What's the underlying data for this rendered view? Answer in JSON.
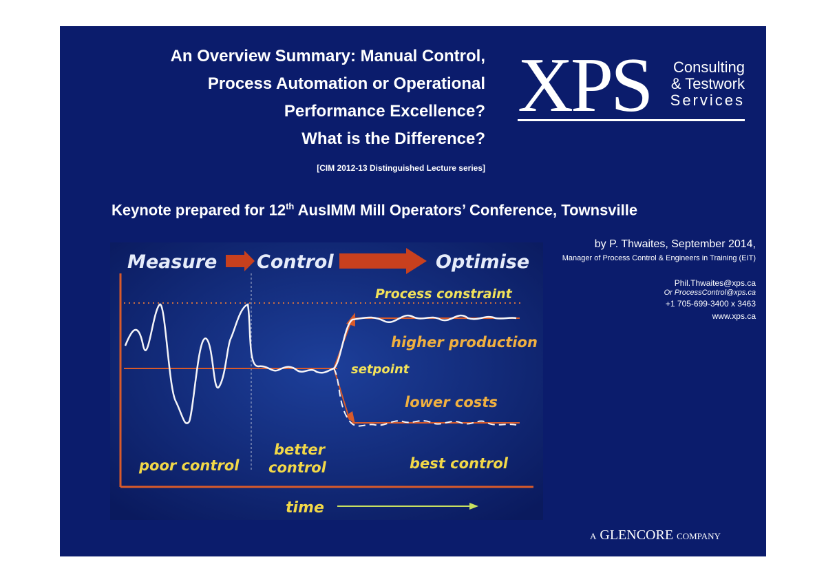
{
  "title": {
    "lines": [
      "An Overview Summary: Manual Control,",
      "Process Automation or Operational",
      "Performance Excellence?",
      "What is the Difference?"
    ],
    "series_note": "[CIM 2012-13 Distinguished Lecture series]"
  },
  "logo": {
    "mark": "XPS",
    "lines": [
      "Consulting",
      "& Testwork",
      "Services"
    ]
  },
  "keynote": {
    "before": "Keynote prepared for 12",
    "sup": "th",
    "after": " AusIMM Mill Operators’ Conference, Townsville"
  },
  "author": {
    "byline": "by P. Thwaites, September 2014,",
    "role": "Manager of Process Control & Engineers in Training (EIT)",
    "email": "Phil.Thwaites@xps.ca",
    "alt_email": "Or ProcessControl@xps.ca",
    "phone": "+1 705-699-3400 x 3463",
    "web": "www.xps.ca"
  },
  "figure": {
    "stages": [
      "Measure",
      "Control",
      "Optimise"
    ],
    "constraint": "Process constraint",
    "higher": "higher production",
    "setpoint": "setpoint",
    "lower": "lower costs",
    "poor": "poor control",
    "better": [
      "better",
      "control"
    ],
    "best": "best control",
    "time": "time"
  },
  "footer": {
    "a": "A",
    "company": "GLENCORE",
    "suffix": "COMPANY"
  }
}
